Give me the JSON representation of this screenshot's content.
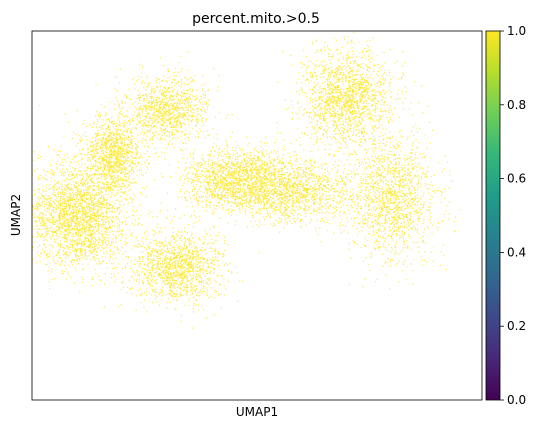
{
  "chart_data": {
    "type": "scatter",
    "title": "percent.mito.>0.5",
    "xlabel": "UMAP1",
    "ylabel": "UMAP2",
    "x_ticks_shown": false,
    "y_ticks_shown": false,
    "grid": false,
    "point_color": "#fde725",
    "colorbar": {
      "colormap": "viridis",
      "range": [
        0.0,
        1.0
      ],
      "ticks": [
        "0.0",
        "0.2",
        "0.4",
        "0.6",
        "0.8",
        "1.0"
      ],
      "stops": [
        "#440154",
        "#482878",
        "#3e4989",
        "#31688e",
        "#26828e",
        "#1f9e89",
        "#35b779",
        "#6ece58",
        "#b5de2b",
        "#fde725"
      ]
    },
    "series": [
      {
        "value": 1.0,
        "clusters": [
          {
            "cx": 0.1,
            "cy": 0.5,
            "rx": 0.1,
            "ry": 0.13,
            "n": 2200
          },
          {
            "cx": 0.18,
            "cy": 0.33,
            "rx": 0.06,
            "ry": 0.09,
            "n": 1100
          },
          {
            "cx": 0.3,
            "cy": 0.21,
            "rx": 0.08,
            "ry": 0.08,
            "n": 1000
          },
          {
            "cx": 0.32,
            "cy": 0.64,
            "rx": 0.09,
            "ry": 0.09,
            "n": 1300
          },
          {
            "cx": 0.45,
            "cy": 0.4,
            "rx": 0.1,
            "ry": 0.08,
            "n": 1400
          },
          {
            "cx": 0.58,
            "cy": 0.43,
            "rx": 0.12,
            "ry": 0.08,
            "n": 1300
          },
          {
            "cx": 0.7,
            "cy": 0.18,
            "rx": 0.09,
            "ry": 0.12,
            "n": 1600
          },
          {
            "cx": 0.8,
            "cy": 0.45,
            "rx": 0.09,
            "ry": 0.15,
            "n": 1400
          }
        ]
      }
    ]
  }
}
